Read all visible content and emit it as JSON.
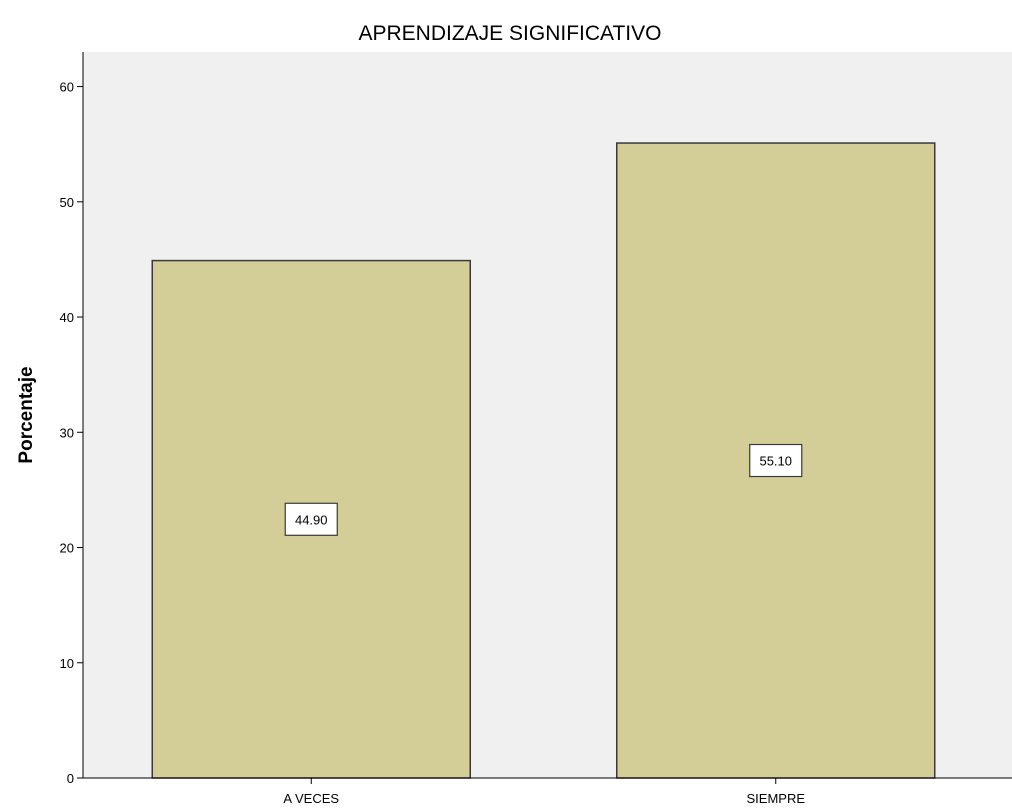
{
  "chart_data": {
    "type": "bar",
    "title": "APRENDIZAJE SIGNIFICATIVO",
    "xlabel": "",
    "ylabel": "Porcentaje",
    "categories": [
      "A VECES",
      "SIEMPRE"
    ],
    "values": [
      44.9,
      55.1
    ],
    "data_labels": [
      "44.90",
      "55.10"
    ],
    "ylim": [
      0,
      63
    ],
    "yticks": [
      0,
      10,
      20,
      30,
      40,
      50,
      60
    ],
    "grid": false,
    "legend": "none",
    "colors": {
      "bar_fill": "#d3ce97",
      "bar_stroke": "#3a3a3a",
      "plot_background": "#f0f0f0",
      "axis": "#000000",
      "label_box": "#ffffff"
    }
  }
}
